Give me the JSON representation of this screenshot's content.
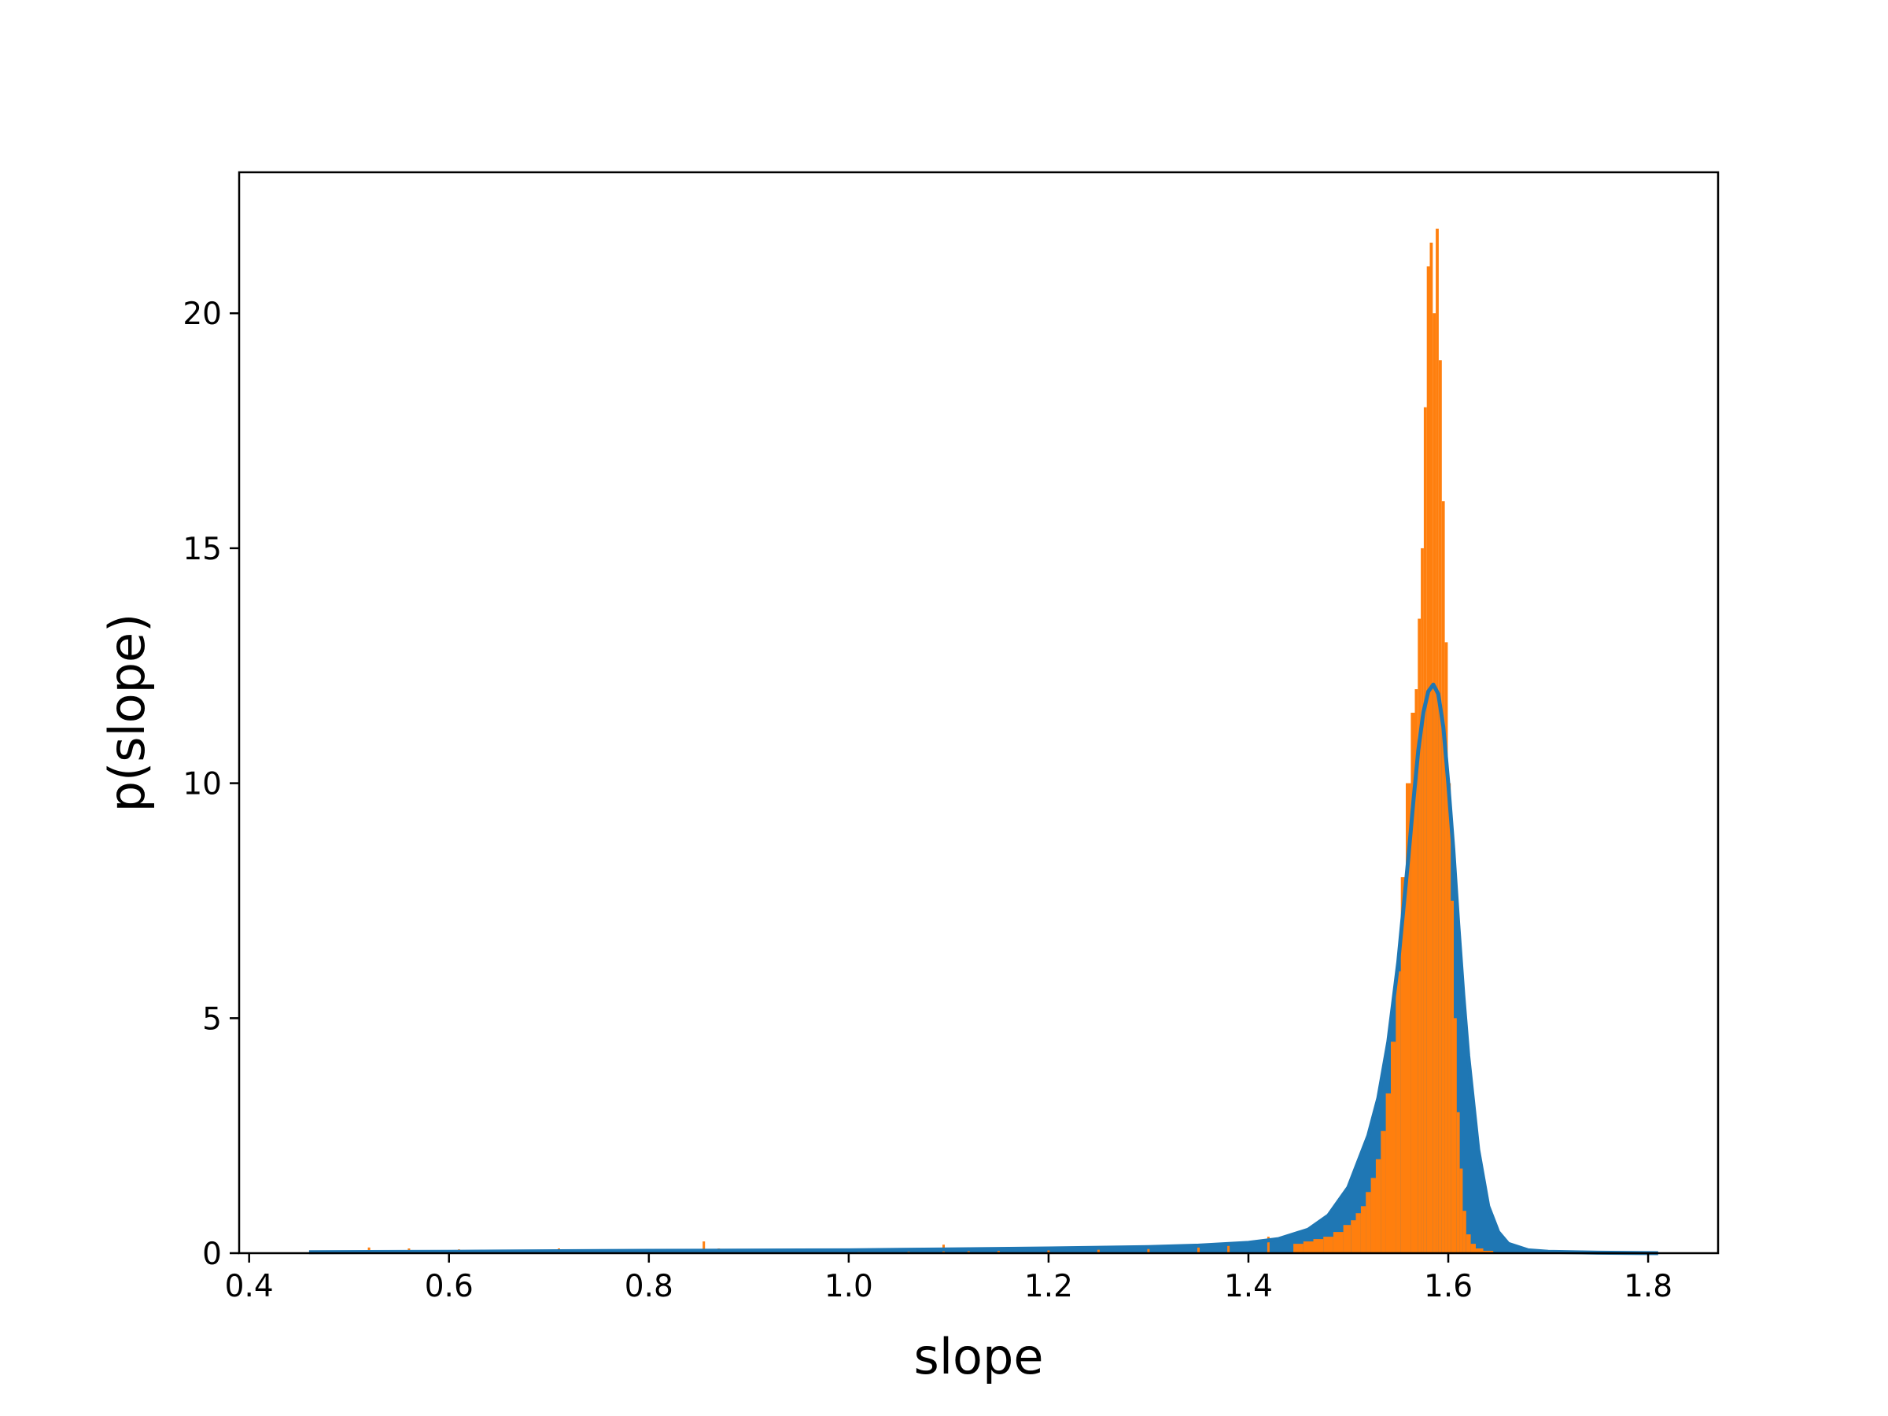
{
  "chart_data": {
    "type": "bar",
    "title": "",
    "xlabel": "slope",
    "ylabel": "p(slope)",
    "xlim": [
      0.39,
      1.87
    ],
    "ylim": [
      0,
      23
    ],
    "grid": false,
    "xticks": [
      0.4,
      0.6,
      0.8,
      1.0,
      1.2,
      1.4,
      1.6,
      1.8
    ],
    "xtick_labels": [
      "0.4",
      "0.6",
      "0.8",
      "1.0",
      "1.2",
      "1.4",
      "1.6",
      "1.8"
    ],
    "yticks": [
      0,
      5,
      10,
      15,
      20
    ],
    "ytick_labels": [
      "0",
      "5",
      "10",
      "15",
      "20"
    ],
    "colors": {
      "fit": "#1f77b4",
      "histogram": "#ff7f0e"
    },
    "fit_curve": {
      "x": [
        0.46,
        0.6,
        0.8,
        1.0,
        1.1,
        1.2,
        1.3,
        1.35,
        1.4,
        1.43,
        1.46,
        1.48,
        1.5,
        1.52,
        1.53,
        1.54,
        1.55,
        1.56,
        1.565,
        1.57,
        1.575,
        1.58,
        1.585,
        1.59,
        1.595,
        1.6,
        1.605,
        1.61,
        1.615,
        1.62,
        1.63,
        1.64,
        1.65,
        1.66,
        1.68,
        1.7,
        1.75,
        1.81
      ],
      "y": [
        0.02,
        0.03,
        0.05,
        0.06,
        0.08,
        0.1,
        0.13,
        0.16,
        0.22,
        0.3,
        0.5,
        0.8,
        1.4,
        2.5,
        3.3,
        4.5,
        6.2,
        8.4,
        9.6,
        10.7,
        11.5,
        11.95,
        12.1,
        11.9,
        11.2,
        10.0,
        8.6,
        7.0,
        5.5,
        4.2,
        2.2,
        1.0,
        0.45,
        0.2,
        0.06,
        0.03,
        0.01,
        0.0
      ]
    },
    "histogram": {
      "centers": [
        1.45,
        1.46,
        1.47,
        1.48,
        1.49,
        1.5,
        1.505,
        1.51,
        1.515,
        1.52,
        1.525,
        1.53,
        1.535,
        1.54,
        1.545,
        1.55,
        1.555,
        1.56,
        1.565,
        1.568,
        1.571,
        1.574,
        1.577,
        1.58,
        1.583,
        1.586,
        1.589,
        1.592,
        1.595,
        1.598,
        1.601,
        1.604,
        1.607,
        1.61,
        1.613,
        1.616,
        1.62,
        1.625,
        1.63,
        1.64
      ],
      "values": [
        0.2,
        0.25,
        0.3,
        0.35,
        0.45,
        0.6,
        0.7,
        0.85,
        1.0,
        1.3,
        1.6,
        2.0,
        2.6,
        3.4,
        4.5,
        6.0,
        8.0,
        10.0,
        11.5,
        12.0,
        13.5,
        15.0,
        18.0,
        21.0,
        21.5,
        20.0,
        21.8,
        19.0,
        16.0,
        13.0,
        10.0,
        7.5,
        5.0,
        3.0,
        1.8,
        0.9,
        0.4,
        0.2,
        0.1,
        0.05
      ]
    },
    "histogram_tail": {
      "x": [
        0.52,
        0.56,
        0.61,
        0.66,
        0.71,
        0.76,
        0.81,
        0.855,
        0.87,
        0.91,
        0.96,
        1.01,
        1.06,
        1.095,
        1.12,
        1.15,
        1.2,
        1.25,
        1.3,
        1.35,
        1.38,
        1.42
      ],
      "values": [
        0.12,
        0.1,
        0.08,
        0.07,
        0.1,
        0.06,
        0.05,
        0.25,
        0.1,
        0.09,
        0.06,
        0.07,
        0.08,
        0.18,
        0.1,
        0.12,
        0.1,
        0.13,
        0.15,
        0.2,
        0.18,
        0.35
      ]
    }
  }
}
